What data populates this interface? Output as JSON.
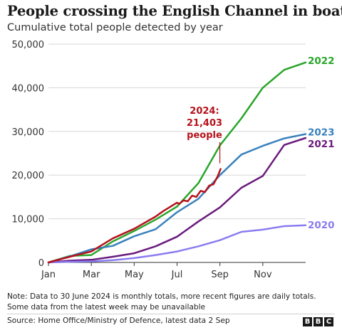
{
  "title": "People crossing the English Channel in boats",
  "subtitle": "Cumulative total people detected by year",
  "note_lines": [
    "Note: Data to 30 June 2024 is monthly totals, more recent figures are daily totals.",
    "Some data from the latest week may be unavailable"
  ],
  "source": "Source: Home Office/Ministry of Defence, latest data 2 Sep",
  "logo": [
    "B",
    "B",
    "C"
  ],
  "chart_data": {
    "type": "line",
    "xlabel": "",
    "ylabel": "",
    "ylim": [
      0,
      50000
    ],
    "yticks": [
      0,
      10000,
      20000,
      30000,
      40000,
      50000
    ],
    "ytick_labels": [
      "0",
      "10,000",
      "20,000",
      "30,000",
      "40,000",
      "50,000"
    ],
    "xtick_labels": [
      "Jan",
      "Mar",
      "May",
      "Jul",
      "Sep",
      "Nov"
    ],
    "xtick_months": [
      0,
      2,
      4,
      6,
      8,
      10
    ],
    "grid": true,
    "legend": "end-of-line labels",
    "series": [
      {
        "name": "2022",
        "color": "#2aa52a",
        "x": [
          0,
          1,
          2,
          3,
          4,
          5,
          6,
          7,
          8,
          9,
          10,
          11,
          12
        ],
        "values": [
          0,
          1500,
          1700,
          4800,
          7200,
          9800,
          12800,
          18200,
          26800,
          33000,
          40000,
          44100,
          45800
        ]
      },
      {
        "name": "2023",
        "color": "#3a81bd",
        "x": [
          0,
          1,
          2,
          3,
          4,
          5,
          6,
          7,
          8,
          9,
          10,
          11,
          12
        ],
        "values": [
          0,
          1400,
          3000,
          3800,
          6000,
          7600,
          11500,
          14600,
          20000,
          24700,
          26700,
          28400,
          29400
        ]
      },
      {
        "name": "2021",
        "color": "#6a1b7c",
        "x": [
          0,
          1,
          2,
          3,
          4,
          5,
          6,
          7,
          8,
          9,
          10,
          11,
          12
        ],
        "values": [
          0,
          400,
          600,
          1300,
          2100,
          3700,
          5900,
          9400,
          12600,
          17100,
          19800,
          26900,
          28500
        ]
      },
      {
        "name": "2020",
        "color": "#8a7cf0",
        "x": [
          0,
          1,
          2,
          3,
          4,
          5,
          6,
          7,
          8,
          9,
          10,
          11,
          12
        ],
        "values": [
          0,
          150,
          250,
          500,
          1000,
          1700,
          2500,
          3700,
          5100,
          7000,
          7500,
          8300,
          8500
        ]
      },
      {
        "name": "2024",
        "color": "#b5121b",
        "x": [
          0,
          1,
          2,
          3,
          4,
          5,
          5.2,
          5.4,
          5.6,
          5.8,
          6,
          6.1,
          6.3,
          6.5,
          6.7,
          6.9,
          7.1,
          7.3,
          7.5,
          7.7,
          7.9,
          8.03
        ],
        "values": [
          0,
          1300,
          2500,
          5500,
          7700,
          10500,
          11200,
          11900,
          12500,
          13100,
          13700,
          13400,
          14200,
          14000,
          15300,
          15000,
          16400,
          16100,
          17600,
          17900,
          19800,
          21403
        ]
      }
    ],
    "annotation": {
      "lines": [
        "2024:",
        "21,403",
        "people"
      ],
      "color": "#b5121b",
      "x": 8.03,
      "y": 21403
    }
  }
}
